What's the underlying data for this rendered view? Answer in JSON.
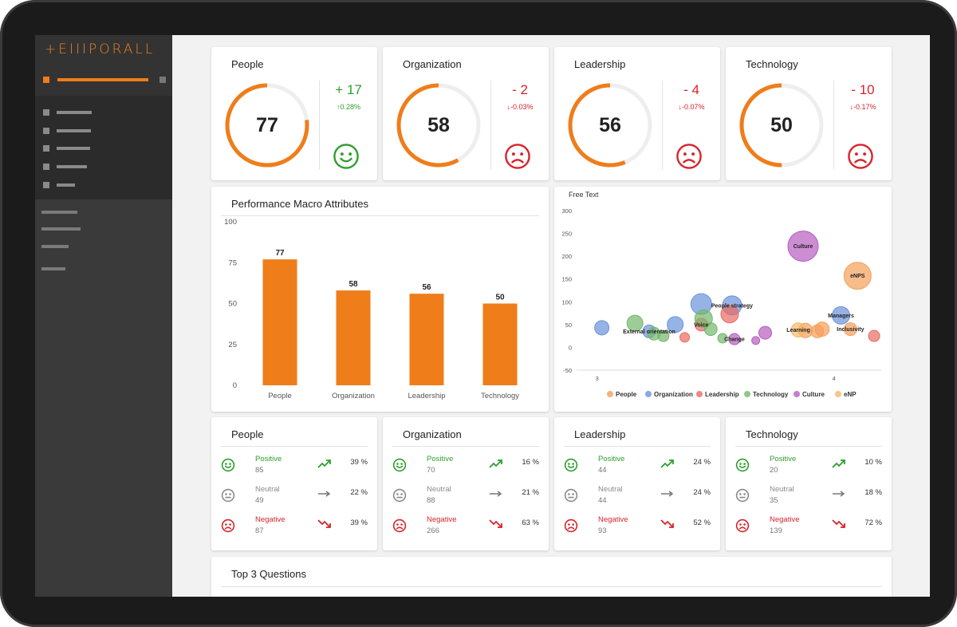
{
  "brand": {
    "logo_text": "+EIIIPORALL",
    "accent": "#ef7d1a"
  },
  "kpis": [
    {
      "title": "People",
      "score": 77,
      "delta": "+ 17",
      "pct": "0.28%",
      "direction": "up",
      "mood": "happy"
    },
    {
      "title": "Organization",
      "score": 58,
      "delta": "- 2",
      "pct": "-0.03%",
      "direction": "down",
      "mood": "sad"
    },
    {
      "title": "Leadership",
      "score": 56,
      "delta": "- 4",
      "pct": "-0.07%",
      "direction": "down",
      "mood": "sad"
    },
    {
      "title": "Technology",
      "score": 50,
      "delta": "- 10",
      "pct": "-0.17%",
      "direction": "down",
      "mood": "sad"
    }
  ],
  "bar_panel": {
    "title": "Performance Macro Attributes"
  },
  "bubble_panel": {
    "title": "Free Text"
  },
  "chart_data": [
    {
      "type": "bar",
      "title": "Performance Macro Attributes",
      "categories": [
        "People",
        "Organization",
        "Leadership",
        "Technology"
      ],
      "values": [
        77,
        58,
        56,
        50
      ],
      "ylim": [
        0,
        100
      ],
      "yticks": [
        "0",
        "25",
        "50",
        "75",
        "100"
      ],
      "color": "#ef7d1a",
      "grid": false
    },
    {
      "type": "scatter",
      "title": "Free Text",
      "xlim": [
        2.9,
        4.2
      ],
      "ylim": [
        -50,
        300
      ],
      "xticks": [
        "3",
        "4"
      ],
      "yticks": [
        "-50",
        "0",
        "50",
        "100",
        "150",
        "200",
        "250",
        "300"
      ],
      "legend_position": "bottom",
      "series": [
        {
          "name": "People",
          "color": "#f5a05a",
          "points": [
            [
              3.88,
              37,
              9,
              ""
            ],
            [
              3.93,
              35,
              8,
              ""
            ],
            [
              3.95,
              40,
              9,
              ""
            ],
            [
              4.1,
              157,
              17,
              "eNPS"
            ],
            [
              4.07,
              40,
              8,
              "Inclusivity"
            ]
          ]
        },
        {
          "name": "Organization",
          "color": "#6b93dc",
          "points": [
            [
              3.02,
              43,
              9,
              ""
            ],
            [
              3.22,
              35,
              8,
              "External orientation"
            ],
            [
              3.33,
              50,
              10,
              ""
            ],
            [
              3.44,
              95,
              13,
              ""
            ],
            [
              3.57,
              92,
              12,
              "People strategy"
            ],
            [
              4.03,
              70,
              11,
              "Managers"
            ]
          ]
        },
        {
          "name": "Leadership",
          "color": "#ea6b63",
          "points": [
            [
              3.56,
              73,
              11,
              ""
            ],
            [
              3.44,
              50,
              8,
              "Voice"
            ],
            [
              4.17,
              25,
              7,
              ""
            ],
            [
              3.37,
              22,
              6,
              ""
            ]
          ]
        },
        {
          "name": "Technology",
          "color": "#74b86b",
          "points": [
            [
              3.16,
              53,
              10,
              ""
            ],
            [
              3.24,
              30,
              8,
              ""
            ],
            [
              3.28,
              25,
              7,
              ""
            ],
            [
              3.45,
              63,
              11,
              ""
            ],
            [
              3.48,
              40,
              8,
              ""
            ],
            [
              3.53,
              20,
              6,
              ""
            ]
          ]
        },
        {
          "name": "Culture",
          "color": "#b85cc0",
          "points": [
            [
              3.87,
              222,
              19,
              "Culture"
            ],
            [
              3.58,
              18,
              7,
              "Change"
            ],
            [
              3.71,
              32,
              8,
              ""
            ],
            [
              3.67,
              15,
              5,
              ""
            ]
          ]
        },
        {
          "name": "eNP",
          "color": "#f5b86a",
          "points": [
            [
              3.85,
              38,
              9,
              "Learning"
            ]
          ]
        }
      ]
    }
  ],
  "sentiment": [
    {
      "title": "People",
      "rows": [
        {
          "label": "Positive",
          "count": "85",
          "pct": "39 %",
          "kind": "pos"
        },
        {
          "label": "Neutral",
          "count": "49",
          "pct": "22 %",
          "kind": "neu"
        },
        {
          "label": "Negative",
          "count": "87",
          "pct": "39 %",
          "kind": "neg"
        }
      ]
    },
    {
      "title": "Organization",
      "rows": [
        {
          "label": "Positive",
          "count": "70",
          "pct": "16 %",
          "kind": "pos"
        },
        {
          "label": "Neutral",
          "count": "88",
          "pct": "21 %",
          "kind": "neu"
        },
        {
          "label": "Negative",
          "count": "266",
          "pct": "63 %",
          "kind": "neg"
        }
      ]
    },
    {
      "title": "Leadership",
      "rows": [
        {
          "label": "Positive",
          "count": "44",
          "pct": "24 %",
          "kind": "pos"
        },
        {
          "label": "Neutral",
          "count": "44",
          "pct": "24 %",
          "kind": "neu"
        },
        {
          "label": "Negative",
          "count": "93",
          "pct": "52 %",
          "kind": "neg"
        }
      ]
    },
    {
      "title": "Technology",
      "rows": [
        {
          "label": "Positive",
          "count": "20",
          "pct": "10 %",
          "kind": "pos"
        },
        {
          "label": "Neutral",
          "count": "35",
          "pct": "18 %",
          "kind": "neu"
        },
        {
          "label": "Negative",
          "count": "139",
          "pct": "72 %",
          "kind": "neg"
        }
      ]
    }
  ],
  "questions_panel": {
    "title": "Top 3 Questions"
  },
  "colors": {
    "positive": "#2e9e2e",
    "negative": "#d8232a",
    "neutral": "#8a8a8a",
    "gauge_track": "#eeeeee"
  }
}
